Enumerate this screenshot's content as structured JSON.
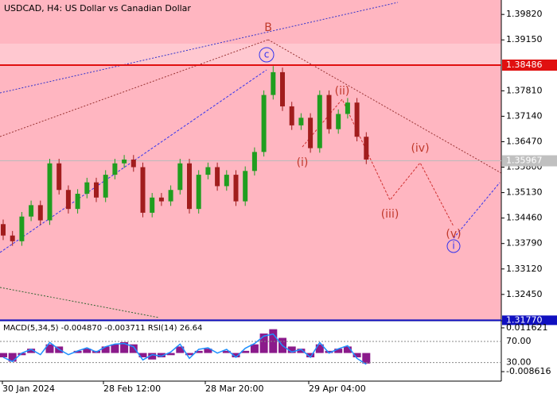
{
  "chart_data": {
    "type": "candlestick",
    "title": "USDCAD, H4:  US Dollar vs Canadian Dollar",
    "open": [
      1.343,
      1.34,
      1.3385,
      1.345,
      1.348,
      1.344,
      1.359,
      1.352,
      1.347,
      1.351,
      1.354,
      1.35,
      1.356,
      1.359,
      1.36,
      1.358,
      1.346,
      1.35,
      1.349,
      1.352,
      1.359,
      1.347,
      1.356,
      1.358,
      1.353,
      1.356,
      1.349,
      1.357,
      1.362,
      1.377,
      1.383,
      1.374,
      1.369,
      1.371,
      1.363,
      1.377,
      1.368,
      1.372,
      1.375,
      1.366
    ],
    "high": [
      1.3442,
      1.3412,
      1.3462,
      1.3492,
      1.3492,
      1.3602,
      1.3602,
      1.3532,
      1.3522,
      1.3552,
      1.3552,
      1.3572,
      1.3602,
      1.3612,
      1.3612,
      1.3592,
      1.3512,
      1.3512,
      1.3532,
      1.3602,
      1.3602,
      1.3572,
      1.3592,
      1.3592,
      1.3572,
      1.3572,
      1.3582,
      1.3632,
      1.3782,
      1.3846,
      1.3842,
      1.3752,
      1.3722,
      1.3722,
      1.3782,
      1.3782,
      1.3732,
      1.3762,
      1.3762,
      1.3672
    ],
    "low": [
      1.3388,
      1.3373,
      1.3373,
      1.3438,
      1.3428,
      1.3428,
      1.3508,
      1.3458,
      1.3458,
      1.3498,
      1.3488,
      1.3488,
      1.3548,
      1.3578,
      1.3568,
      1.3448,
      1.3448,
      1.3478,
      1.3478,
      1.3508,
      1.3458,
      1.3458,
      1.3548,
      1.3518,
      1.3518,
      1.3478,
      1.3478,
      1.3558,
      1.3608,
      1.3758,
      1.3728,
      1.3678,
      1.3678,
      1.3618,
      1.3618,
      1.3668,
      1.3668,
      1.3708,
      1.3648,
      1.3588
    ],
    "close": [
      1.34,
      1.3385,
      1.345,
      1.348,
      1.344,
      1.359,
      1.352,
      1.347,
      1.351,
      1.354,
      1.35,
      1.356,
      1.359,
      1.36,
      1.358,
      1.346,
      1.35,
      1.349,
      1.352,
      1.359,
      1.347,
      1.356,
      1.358,
      1.353,
      1.356,
      1.349,
      1.357,
      1.362,
      1.377,
      1.383,
      1.374,
      1.369,
      1.371,
      1.363,
      1.377,
      1.368,
      1.372,
      1.375,
      1.366,
      1.36
    ],
    "up_color": "#1f9e1f",
    "down_color": "#a11d1d",
    "ylim": [
      1.3184,
      1.402
    ],
    "yticks": [
      {
        "value": 1.3982,
        "label": "1.39820"
      },
      {
        "value": 1.3915,
        "label": "1.39150"
      },
      {
        "value": 1.3781,
        "label": "1.37810"
      },
      {
        "value": 1.3714,
        "label": "1.37140"
      },
      {
        "value": 1.3647,
        "label": "1.36470"
      },
      {
        "value": 1.358,
        "label": "1.35800"
      },
      {
        "value": 1.3513,
        "label": "1.35130"
      },
      {
        "value": 1.3446,
        "label": "1.34460"
      },
      {
        "value": 1.3379,
        "label": "1.33790"
      },
      {
        "value": 1.3312,
        "label": "1.33120"
      },
      {
        "value": 1.3245,
        "label": "1.32450"
      }
    ],
    "resistance_level": 1.38486,
    "current_price": 1.35967,
    "support_level": {
      "value": 1.3177,
      "label": "1.31770"
    },
    "time_labels": [
      "30 Jan 2024",
      "28 Feb 12:00",
      "28 Mar 20:00",
      "29 Apr 04:00"
    ],
    "wave_labels": [
      "B",
      "c",
      "(i)",
      "(ii)",
      "(iii)",
      "(iv)",
      "(v)",
      "i"
    ],
    "indicator_title": "MACD(5,34,5) -0.004870 -0.003711 RSI(14) 26.64",
    "macd_histogram": [
      -0.002,
      -0.004,
      -0.001,
      0.002,
      0.0,
      0.004,
      0.003,
      0.0,
      0.001,
      0.002,
      0.001,
      0.003,
      0.004,
      0.005,
      0.004,
      -0.002,
      -0.003,
      -0.002,
      -0.001,
      0.003,
      -0.001,
      0.001,
      0.002,
      0.0,
      0.001,
      -0.002,
      0.001,
      0.004,
      0.009,
      0.011,
      0.007,
      0.003,
      0.002,
      -0.002,
      0.004,
      0.001,
      0.002,
      0.003,
      -0.002,
      -0.00487
    ],
    "macd_color": "#8b1a8b",
    "macd_ylim": [
      -0.013,
      0.0149
    ],
    "macd_ticks": [
      0.011621,
      -0.008616
    ],
    "rsi": [
      40,
      32,
      48,
      55,
      45,
      68,
      55,
      45,
      52,
      58,
      50,
      60,
      65,
      66,
      60,
      35,
      45,
      42,
      50,
      65,
      38,
      55,
      58,
      48,
      55,
      40,
      57,
      66,
      80,
      84,
      62,
      50,
      55,
      40,
      68,
      48,
      56,
      62,
      38,
      26.64
    ],
    "rsi_color": "#1e90ff",
    "rsi_ylim": [
      -5,
      109
    ],
    "rsi_ticks": [
      {
        "value": 70,
        "label": "70.00"
      },
      {
        "value": 30,
        "label": "30.00"
      }
    ]
  }
}
